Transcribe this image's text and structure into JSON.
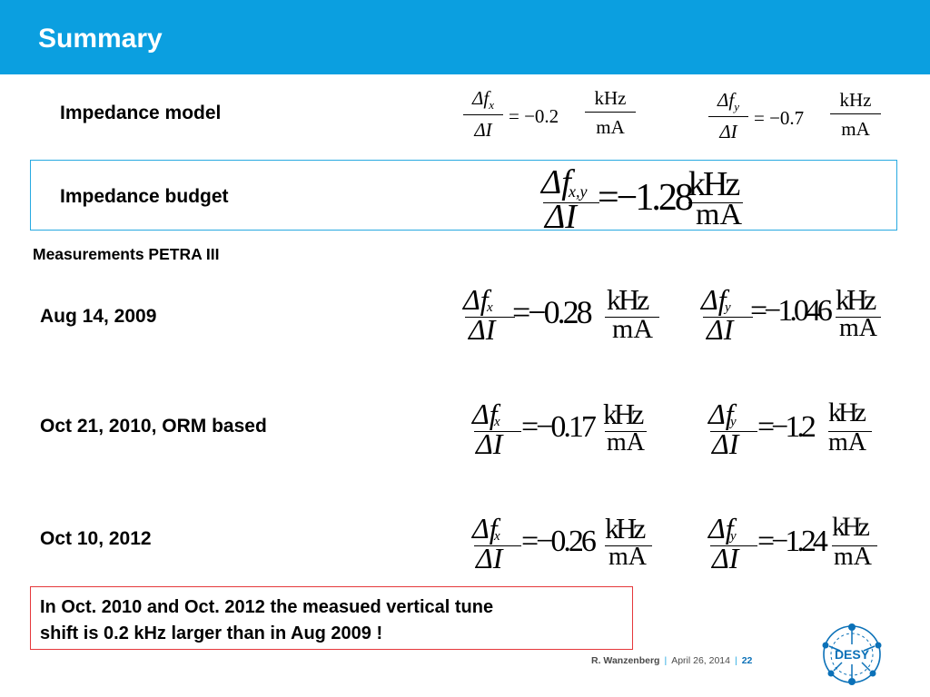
{
  "header": {
    "title": "Summary"
  },
  "impedance_model": {
    "label": "Impedance model",
    "fx": {
      "num": "Δf",
      "sub": "x",
      "den": "ΔI",
      "eq": "= −0.2",
      "unit_num": "kHz",
      "unit_den": "mA"
    },
    "fy": {
      "num": "Δf",
      "sub": "y",
      "den": "ΔI",
      "eq": "= −0.7",
      "unit_num": "kHz",
      "unit_den": "mA"
    }
  },
  "impedance_budget": {
    "label": "Impedance budget",
    "formula": {
      "num": "Δf",
      "sub": "x,y",
      "den": "ΔI",
      "eq": "=−1.28",
      "unit_num": "kHz",
      "unit_den": "mA"
    }
  },
  "measurements": {
    "heading": "Measurements PETRA III",
    "rows": [
      {
        "label": "Aug 14, 2009",
        "fx": {
          "num": "Δf",
          "sub": "x",
          "den": "ΔI",
          "eq": "=−0.28",
          "unit_num": "kHz",
          "unit_den": "mA"
        },
        "fy": {
          "num": "Δf",
          "sub": "y",
          "den": "ΔI",
          "eq": "=−1.046",
          "unit_num": "kHz",
          "unit_den": "mA"
        }
      },
      {
        "label": "Oct 21, 2010, ORM based",
        "fx": {
          "num": "Δf",
          "sub": "x",
          "den": "ΔI",
          "eq": "=−0.17",
          "unit_num": "kHz",
          "unit_den": "mA"
        },
        "fy": {
          "num": "Δf",
          "sub": "y",
          "den": "ΔI",
          "eq": "=−1.2",
          "unit_num": "kHz",
          "unit_den": "mA"
        }
      },
      {
        "label": "Oct 10, 2012",
        "fx": {
          "num": "Δf",
          "sub": "x",
          "den": "ΔI",
          "eq": "=−0.26",
          "unit_num": "kHz",
          "unit_den": "mA"
        },
        "fy": {
          "num": "Δf",
          "sub": "y",
          "den": "ΔI",
          "eq": "=−1.24",
          "unit_num": "kHz",
          "unit_den": "mA"
        }
      }
    ]
  },
  "note": {
    "line1": "In Oct. 2010 and Oct. 2012 the measued vertical tune",
    "line2": "shift is 0.2 kHz larger than in Aug 2009  !"
  },
  "footer": {
    "author": "R.  Wanzenberg",
    "date": "April  26,  2014",
    "page": "22",
    "sep": "|"
  },
  "logo": {
    "text": "DESY",
    "color": "#0b71b8"
  }
}
